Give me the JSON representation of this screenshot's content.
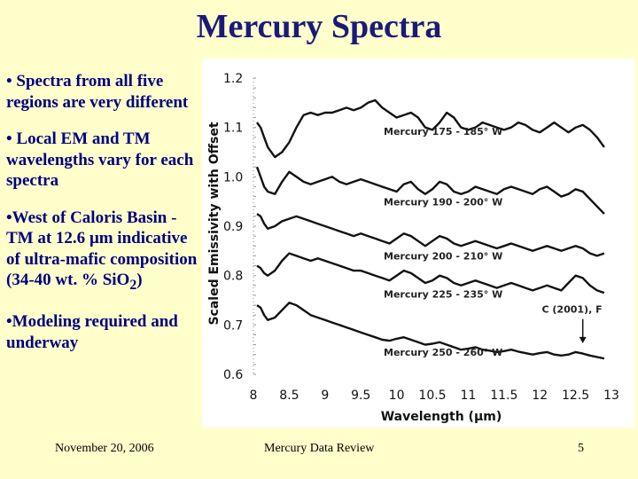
{
  "slide": {
    "title": "Mercury Spectra",
    "bullets": [
      {
        "text": "• Spectra from all five regions are very different"
      },
      {
        "text": "• Local EM and TM wavelengths vary for each spectra"
      },
      {
        "text_before": "•West of Caloris Basin - TM at 12.6 ",
        "mu": "μ",
        "text_mid": "m indicative of ultra-mafic composition (34-40 wt. % SiO",
        "sub": "2",
        "text_after": ")"
      },
      {
        "text": "•Modeling required and underway"
      }
    ],
    "footer": {
      "date": "November 20, 2006",
      "center": "Mercury Data Review",
      "page": "5"
    }
  },
  "chart_data": {
    "type": "line",
    "xlabel": "Wavelength (μm)",
    "ylabel": "Scaled Emissivity with Offset",
    "xlim": [
      8,
      13
    ],
    "ylim": [
      0.6,
      1.2
    ],
    "xticks": [
      "8",
      "8.5",
      "9",
      "9.5",
      "10",
      "10.5",
      "11",
      "11.5",
      "12",
      "12.5",
      "13"
    ],
    "yticks": [
      "0.6",
      "0.7",
      "0.8",
      "0.9",
      "1.0",
      "1.1",
      "1.2"
    ],
    "annotation": "C (2001), F",
    "series": [
      {
        "name": "Mercury 175 - 185° W",
        "color": "#111111",
        "x": [
          8.05,
          8.1,
          8.15,
          8.2,
          8.3,
          8.4,
          8.5,
          8.6,
          8.7,
          8.8,
          8.9,
          9.0,
          9.1,
          9.2,
          9.3,
          9.4,
          9.5,
          9.6,
          9.7,
          9.8,
          9.9,
          10.0,
          10.1,
          10.2,
          10.3,
          10.4,
          10.5,
          10.6,
          10.7,
          10.8,
          10.9,
          11.0,
          11.1,
          11.2,
          11.3,
          11.4,
          11.5,
          11.6,
          11.7,
          11.8,
          11.9,
          12.0,
          12.1,
          12.2,
          12.3,
          12.4,
          12.5,
          12.6,
          12.7,
          12.8,
          12.9
        ],
        "y": [
          1.11,
          1.1,
          1.08,
          1.06,
          1.04,
          1.05,
          1.07,
          1.1,
          1.125,
          1.13,
          1.125,
          1.13,
          1.13,
          1.135,
          1.14,
          1.135,
          1.14,
          1.15,
          1.155,
          1.14,
          1.13,
          1.12,
          1.125,
          1.13,
          1.12,
          1.1,
          1.095,
          1.11,
          1.13,
          1.12,
          1.1,
          1.095,
          1.1,
          1.11,
          1.105,
          1.1,
          1.095,
          1.1,
          1.11,
          1.105,
          1.095,
          1.09,
          1.1,
          1.11,
          1.1,
          1.09,
          1.1,
          1.105,
          1.095,
          1.08,
          1.06
        ]
      },
      {
        "name": "Mercury 190 - 200° W",
        "color": "#111111",
        "x": [
          8.05,
          8.1,
          8.15,
          8.2,
          8.3,
          8.4,
          8.5,
          8.6,
          8.7,
          8.8,
          8.9,
          9.0,
          9.1,
          9.2,
          9.3,
          9.4,
          9.5,
          9.6,
          9.7,
          9.8,
          9.9,
          10.0,
          10.1,
          10.2,
          10.3,
          10.4,
          10.5,
          10.6,
          10.7,
          10.8,
          10.9,
          11.0,
          11.1,
          11.2,
          11.3,
          11.4,
          11.5,
          11.6,
          11.7,
          11.8,
          11.9,
          12.0,
          12.1,
          12.2,
          12.3,
          12.4,
          12.5,
          12.6,
          12.7,
          12.8,
          12.9
        ],
        "y": [
          1.02,
          1.0,
          0.98,
          0.97,
          0.965,
          0.99,
          1.01,
          1.0,
          0.99,
          0.985,
          0.99,
          0.995,
          1.0,
          0.99,
          0.985,
          0.99,
          0.995,
          0.99,
          0.985,
          0.98,
          0.975,
          0.97,
          0.985,
          0.99,
          0.975,
          0.965,
          0.975,
          0.99,
          0.985,
          0.97,
          0.965,
          0.97,
          0.98,
          0.975,
          0.97,
          0.965,
          0.975,
          0.98,
          0.975,
          0.97,
          0.965,
          0.975,
          0.98,
          0.97,
          0.96,
          0.965,
          0.975,
          0.97,
          0.955,
          0.94,
          0.925
        ]
      },
      {
        "name": "Mercury 200 - 210° W",
        "color": "#111111",
        "x": [
          8.05,
          8.1,
          8.15,
          8.2,
          8.3,
          8.4,
          8.5,
          8.6,
          8.7,
          8.8,
          8.9,
          9.0,
          9.1,
          9.2,
          9.3,
          9.4,
          9.5,
          9.6,
          9.7,
          9.8,
          9.9,
          10.0,
          10.1,
          10.2,
          10.3,
          10.4,
          10.5,
          10.6,
          10.7,
          10.8,
          10.9,
          11.0,
          11.1,
          11.2,
          11.3,
          11.4,
          11.5,
          11.6,
          11.7,
          11.8,
          11.9,
          12.0,
          12.1,
          12.2,
          12.3,
          12.4,
          12.5,
          12.6,
          12.7,
          12.8,
          12.9
        ],
        "y": [
          0.925,
          0.92,
          0.905,
          0.895,
          0.9,
          0.91,
          0.915,
          0.92,
          0.915,
          0.91,
          0.905,
          0.9,
          0.895,
          0.89,
          0.885,
          0.88,
          0.885,
          0.88,
          0.875,
          0.87,
          0.865,
          0.875,
          0.885,
          0.88,
          0.87,
          0.86,
          0.87,
          0.88,
          0.875,
          0.865,
          0.86,
          0.865,
          0.87,
          0.865,
          0.86,
          0.855,
          0.86,
          0.865,
          0.86,
          0.855,
          0.85,
          0.855,
          0.86,
          0.855,
          0.85,
          0.855,
          0.86,
          0.855,
          0.845,
          0.84,
          0.845
        ]
      },
      {
        "name": "Mercury 225 - 235° W",
        "color": "#111111",
        "x": [
          8.05,
          8.1,
          8.15,
          8.2,
          8.3,
          8.4,
          8.5,
          8.6,
          8.7,
          8.8,
          8.9,
          9.0,
          9.1,
          9.2,
          9.3,
          9.4,
          9.5,
          9.6,
          9.7,
          9.8,
          9.9,
          10.0,
          10.1,
          10.2,
          10.3,
          10.4,
          10.5,
          10.6,
          10.7,
          10.8,
          10.9,
          11.0,
          11.1,
          11.2,
          11.3,
          11.4,
          11.5,
          11.6,
          11.7,
          11.8,
          11.9,
          12.0,
          12.1,
          12.2,
          12.3,
          12.4,
          12.5,
          12.6,
          12.7,
          12.8,
          12.9
        ],
        "y": [
          0.82,
          0.815,
          0.805,
          0.8,
          0.81,
          0.83,
          0.845,
          0.84,
          0.835,
          0.83,
          0.835,
          0.83,
          0.825,
          0.82,
          0.815,
          0.81,
          0.81,
          0.805,
          0.8,
          0.795,
          0.79,
          0.8,
          0.81,
          0.805,
          0.795,
          0.785,
          0.79,
          0.8,
          0.795,
          0.785,
          0.78,
          0.785,
          0.79,
          0.785,
          0.78,
          0.775,
          0.78,
          0.785,
          0.78,
          0.775,
          0.77,
          0.775,
          0.78,
          0.775,
          0.77,
          0.785,
          0.8,
          0.795,
          0.78,
          0.77,
          0.765
        ]
      },
      {
        "name": "Mercury 250 - 260° W",
        "color": "#111111",
        "x": [
          8.05,
          8.1,
          8.15,
          8.2,
          8.3,
          8.4,
          8.5,
          8.6,
          8.7,
          8.8,
          8.9,
          9.0,
          9.1,
          9.2,
          9.3,
          9.4,
          9.5,
          9.6,
          9.7,
          9.8,
          9.9,
          10.0,
          10.1,
          10.2,
          10.3,
          10.4,
          10.5,
          10.6,
          10.7,
          10.8,
          10.9,
          11.0,
          11.1,
          11.2,
          11.3,
          11.4,
          11.5,
          11.6,
          11.7,
          11.8,
          11.9,
          12.0,
          12.1,
          12.2,
          12.3,
          12.4,
          12.5,
          12.6,
          12.7,
          12.8,
          12.9
        ],
        "y": [
          0.74,
          0.735,
          0.72,
          0.71,
          0.715,
          0.73,
          0.745,
          0.74,
          0.73,
          0.72,
          0.715,
          0.71,
          0.705,
          0.7,
          0.695,
          0.69,
          0.685,
          0.68,
          0.675,
          0.67,
          0.668,
          0.672,
          0.675,
          0.67,
          0.665,
          0.66,
          0.662,
          0.665,
          0.66,
          0.655,
          0.65,
          0.652,
          0.655,
          0.65,
          0.648,
          0.645,
          0.647,
          0.65,
          0.646,
          0.643,
          0.64,
          0.643,
          0.645,
          0.64,
          0.638,
          0.64,
          0.645,
          0.642,
          0.638,
          0.635,
          0.632
        ]
      }
    ]
  }
}
